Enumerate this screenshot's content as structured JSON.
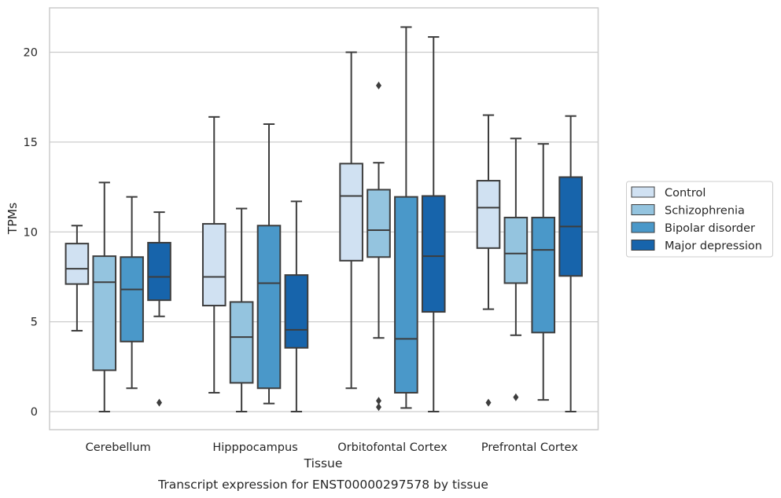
{
  "chart_data": {
    "type": "boxplot",
    "title": "",
    "caption": "Transcript expression for ENST00000297578 by tissue",
    "xlabel": "Tissue",
    "ylabel": "TPMs",
    "ylim": [
      -1,
      22.5
    ],
    "yticks": [
      0,
      5,
      10,
      15,
      20
    ],
    "ytick_labels": [
      "0",
      "5",
      "10",
      "15",
      "20"
    ],
    "grid": "horizontal",
    "legend_position": "right",
    "categories": [
      "Cerebellum",
      "Hipppocampus",
      "Orbitofontal Cortex",
      "Prefrontal Cortex"
    ],
    "series": [
      {
        "name": "Control",
        "color": "#d0e1f2",
        "boxes": [
          {
            "whislo": 4.5,
            "q1": 7.1,
            "med": 7.95,
            "q3": 9.35,
            "whishi": 10.35,
            "fliers": []
          },
          {
            "whislo": 1.05,
            "q1": 5.9,
            "med": 7.5,
            "q3": 10.45,
            "whishi": 16.4,
            "fliers": []
          },
          {
            "whislo": 1.3,
            "q1": 8.4,
            "med": 12.0,
            "q3": 13.8,
            "whishi": 20.0,
            "fliers": []
          },
          {
            "whislo": 5.7,
            "q1": 9.1,
            "med": 11.35,
            "q3": 12.85,
            "whishi": 16.5,
            "fliers": [
              0.5
            ]
          }
        ]
      },
      {
        "name": "Schizophrenia",
        "color": "#94c4df",
        "boxes": [
          {
            "whislo": 0.0,
            "q1": 2.3,
            "med": 7.2,
            "q3": 8.65,
            "whishi": 12.75,
            "fliers": []
          },
          {
            "whislo": 0.0,
            "q1": 1.6,
            "med": 4.15,
            "q3": 6.1,
            "whishi": 11.3,
            "fliers": []
          },
          {
            "whislo": 4.1,
            "q1": 8.6,
            "med": 10.1,
            "q3": 12.35,
            "whishi": 13.85,
            "fliers": [
              18.15,
              0.6,
              0.25
            ]
          },
          {
            "whislo": 4.25,
            "q1": 7.15,
            "med": 8.8,
            "q3": 10.8,
            "whishi": 15.2,
            "fliers": [
              0.8
            ]
          }
        ]
      },
      {
        "name": "Bipolar disorder",
        "color": "#4a98c9",
        "boxes": [
          {
            "whislo": 1.3,
            "q1": 3.9,
            "med": 6.8,
            "q3": 8.6,
            "whishi": 11.95,
            "fliers": []
          },
          {
            "whislo": 0.45,
            "q1": 1.3,
            "med": 7.15,
            "q3": 10.35,
            "whishi": 16.0,
            "fliers": []
          },
          {
            "whislo": 0.2,
            "q1": 1.05,
            "med": 4.05,
            "q3": 11.95,
            "whishi": 21.4,
            "fliers": []
          },
          {
            "whislo": 0.65,
            "q1": 4.4,
            "med": 9.0,
            "q3": 10.8,
            "whishi": 14.9,
            "fliers": []
          }
        ]
      },
      {
        "name": "Major depression",
        "color": "#1764ab",
        "boxes": [
          {
            "whislo": 5.3,
            "q1": 6.2,
            "med": 7.5,
            "q3": 9.4,
            "whishi": 11.1,
            "fliers": [
              0.5
            ]
          },
          {
            "whislo": 0.0,
            "q1": 3.55,
            "med": 4.55,
            "q3": 7.6,
            "whishi": 11.7,
            "fliers": []
          },
          {
            "whislo": 0.0,
            "q1": 5.55,
            "med": 8.65,
            "q3": 12.0,
            "whishi": 20.85,
            "fliers": []
          },
          {
            "whislo": 0.0,
            "q1": 7.55,
            "med": 10.3,
            "q3": 13.05,
            "whishi": 16.45,
            "fliers": []
          }
        ]
      }
    ]
  },
  "colors": {
    "edge": "#3d3d3d",
    "grid": "#cccccc",
    "frame": "#cccccc",
    "text": "#262626"
  }
}
